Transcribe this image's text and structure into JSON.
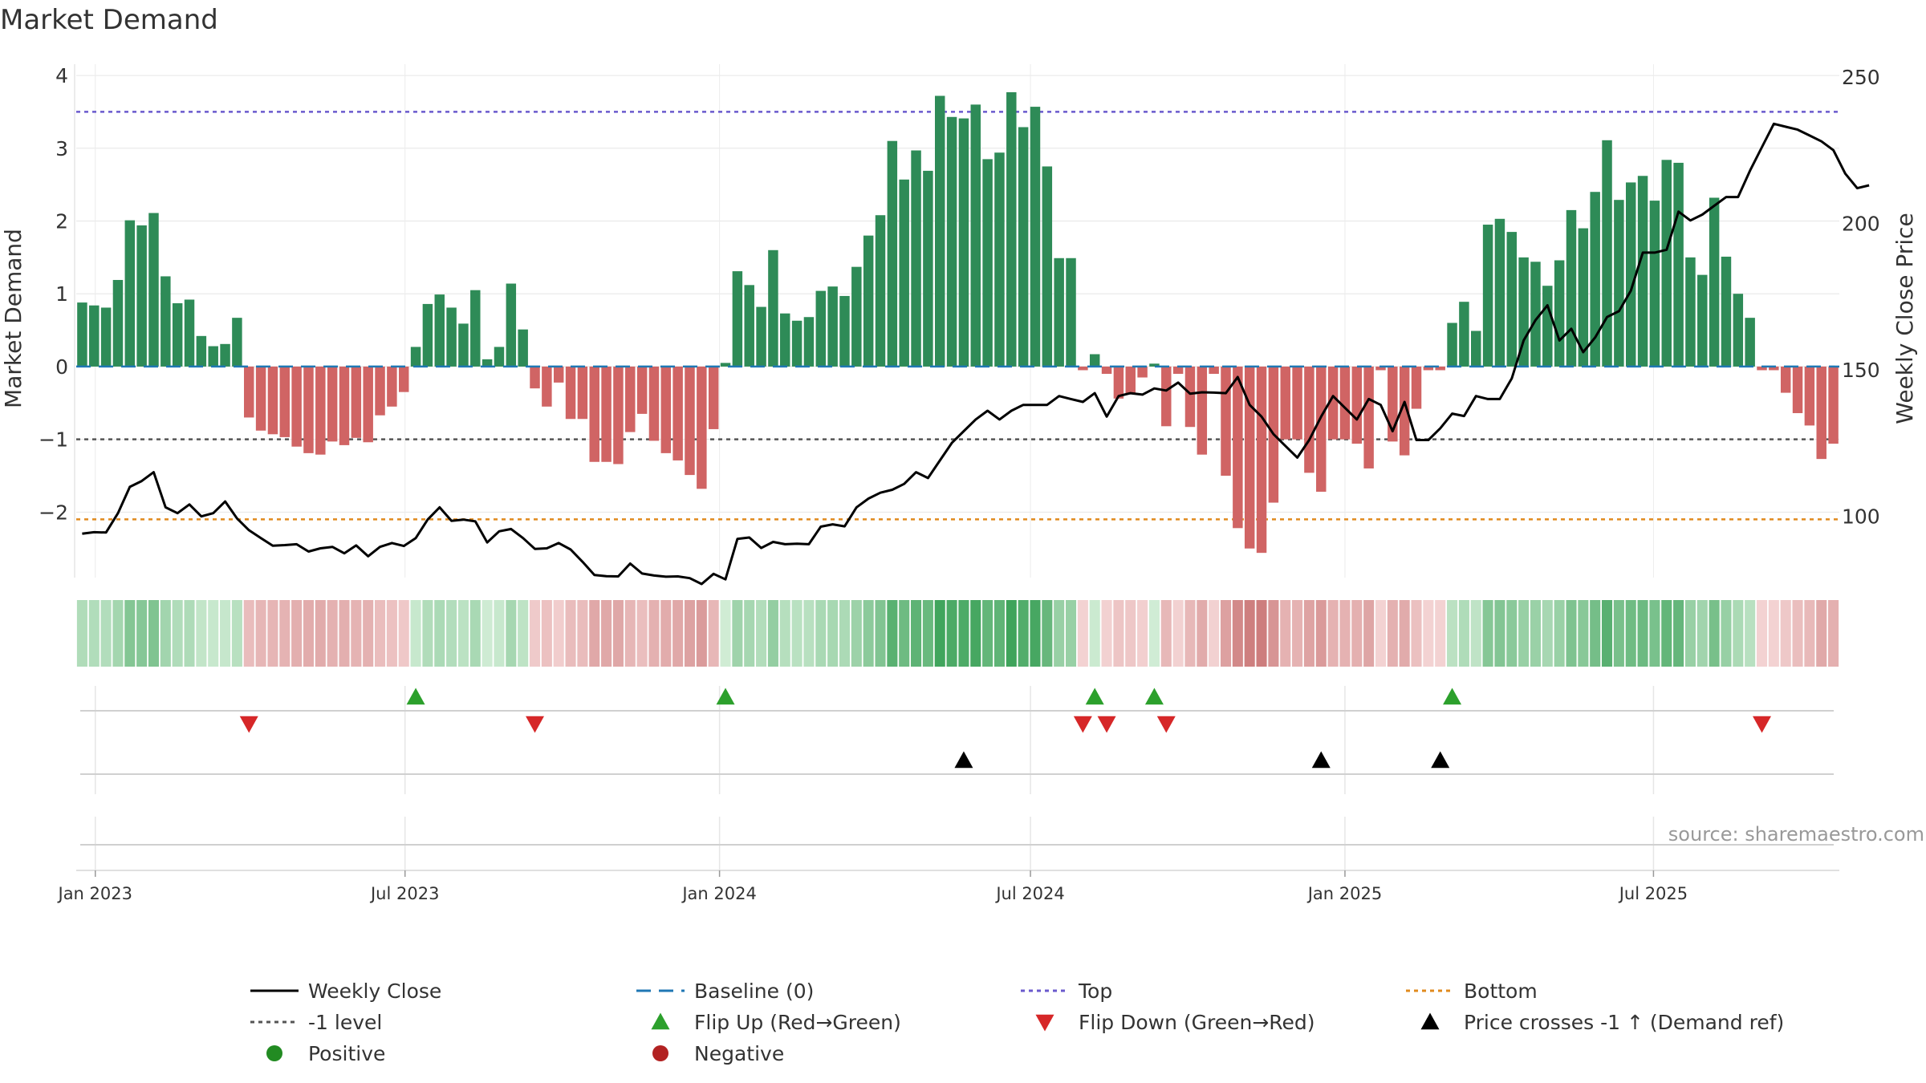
{
  "chart_data": {
    "type": "bar",
    "title": "Market Demand",
    "ylabel": "Market Demand",
    "y2label": "Weekly Close Price",
    "source": "source: sharemaestro.com",
    "ylim": [
      -2.9,
      4.1
    ],
    "y2lim": [
      79,
      253
    ],
    "y_ticks": [
      4,
      3,
      2,
      1,
      0,
      -1,
      -2
    ],
    "y_tick_labels": [
      "4",
      "3",
      "2",
      "1",
      "0",
      "−1",
      "−2"
    ],
    "y2_ticks": [
      250,
      200,
      150,
      100
    ],
    "y2_tick_labels": [
      "250",
      "200",
      "150",
      "100"
    ],
    "x_tick_weeks": [
      1.6,
      27.6,
      54.0,
      80.1,
      106.5,
      132.4
    ],
    "x_tick_labels": [
      "Jan 2023",
      "Jul 2023",
      "Jan 2024",
      "Jul 2024",
      "Jan 2025",
      "Jul 2025"
    ],
    "grid": true,
    "reference_lines": {
      "top": 3.5,
      "bottom": -2.1,
      "minus_one": -1,
      "baseline": 0
    },
    "colors": {
      "positive_bar": "#2e8b57",
      "negative_bar": "#d06464",
      "close_line": "#000000",
      "baseline": "#1f77b4",
      "top": "#6a5acd",
      "bottom": "#e08a1e",
      "minus_one": "#555555",
      "flip_up": "#2ca02c",
      "flip_down": "#d62728",
      "price_cross": "#000000",
      "positive_legend": "#228b22",
      "negative_legend": "#b22222"
    },
    "demand": [
      0.88,
      0.84,
      0.81,
      1.19,
      2.01,
      1.94,
      2.11,
      1.24,
      0.87,
      0.92,
      0.42,
      0.28,
      0.31,
      0.67,
      -0.7,
      -0.88,
      -0.93,
      -0.97,
      -1.1,
      -1.19,
      -1.21,
      -1.03,
      -1.08,
      -0.98,
      -1.04,
      -0.67,
      -0.55,
      -0.35,
      0.27,
      0.86,
      0.99,
      0.81,
      0.59,
      1.05,
      0.1,
      0.27,
      1.14,
      0.51,
      -0.3,
      -0.55,
      -0.22,
      -0.72,
      -0.72,
      -1.31,
      -1.31,
      -1.34,
      -0.9,
      -0.65,
      -1.02,
      -1.19,
      -1.29,
      -1.49,
      -1.68,
      -0.86,
      0.05,
      1.31,
      1.12,
      0.82,
      1.6,
      0.73,
      0.63,
      0.68,
      1.04,
      1.1,
      0.97,
      1.37,
      1.8,
      2.08,
      3.1,
      2.57,
      2.97,
      2.69,
      3.72,
      3.43,
      3.41,
      3.6,
      2.85,
      2.94,
      3.77,
      3.29,
      3.57,
      2.75,
      1.49,
      1.49,
      -0.05,
      0.17,
      -0.1,
      -0.44,
      -0.38,
      -0.15,
      0.04,
      -0.82,
      -0.1,
      -0.83,
      -1.21,
      -0.1,
      -1.5,
      -2.22,
      -2.5,
      -2.56,
      -1.87,
      -1.0,
      -1.0,
      -1.46,
      -1.72,
      -1.0,
      -1.0,
      -1.06,
      -1.4,
      -0.05,
      -1.03,
      -1.22,
      -0.58,
      -0.05,
      -0.05,
      0.6,
      0.89,
      0.49,
      1.95,
      2.03,
      1.85,
      1.5,
      1.44,
      1.11,
      1.46,
      2.15,
      1.9,
      2.4,
      3.11,
      2.29,
      2.53,
      2.62,
      2.28,
      2.84,
      2.8,
      1.5,
      1.26,
      2.32,
      1.51,
      1.0,
      0.67,
      -0.05,
      -0.05,
      -0.36,
      -0.64,
      -0.81,
      -1.27,
      -1.06
    ],
    "close": [
      94,
      94.5,
      94.4,
      101,
      110,
      112,
      115,
      103,
      101,
      104,
      99.9,
      101,
      105,
      99.2,
      95.2,
      92.5,
      89.9,
      90.1,
      90.4,
      87.9,
      89,
      89.5,
      87.3,
      90,
      86.3,
      89.5,
      90.8,
      89.8,
      92.5,
      98.8,
      103,
      98.4,
      98.8,
      98.2,
      91,
      94.8,
      95.6,
      92.5,
      88.8,
      89,
      90.8,
      88.6,
      84.4,
      79.9,
      79.5,
      79.4,
      83.8,
      80.4,
      79.7,
      79.3,
      79.4,
      78.8,
      76.8,
      80.3,
      78.4,
      92.2,
      92.7,
      89.1,
      91.2,
      90.4,
      90.6,
      90.4,
      96.4,
      97.2,
      96.5,
      103,
      106,
      108,
      109,
      111,
      115,
      113,
      119,
      125,
      129,
      133,
      136,
      133,
      136,
      138,
      138,
      138,
      141,
      140,
      139,
      142,
      134,
      141,
      142,
      141.5,
      143.6,
      142.9,
      145.6,
      141.8,
      142.3,
      142.2,
      142,
      147.5,
      138,
      134,
      128,
      124,
      120,
      126,
      134,
      141,
      137,
      133,
      140,
      138,
      129,
      139,
      126,
      126,
      130,
      135,
      134.2,
      141,
      140,
      140,
      147,
      160,
      167,
      172,
      160,
      164,
      156,
      161,
      168,
      170,
      177,
      190,
      190,
      191,
      204,
      201,
      203,
      206,
      209,
      209,
      218,
      226,
      234,
      233,
      232,
      230,
      228,
      225,
      217,
      212,
      213
    ]
  },
  "legend": [
    {
      "label": "Weekly Close"
    },
    {
      "label": "Baseline (0)"
    },
    {
      "label": "Top"
    },
    {
      "label": "Bottom"
    },
    {
      "label": "-1 level"
    },
    {
      "label": "Flip Up (Red→Green)"
    },
    {
      "label": "Flip Down (Green→Red)"
    },
    {
      "label": "Price crosses -1 ↑ (Demand ref)"
    },
    {
      "label": "Positive"
    },
    {
      "label": "Negative"
    }
  ]
}
